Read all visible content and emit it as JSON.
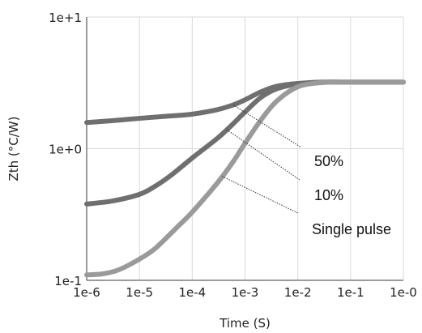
{
  "chart_data": {
    "type": "line",
    "title": "",
    "xlabel": "Time (S)",
    "ylabel": "Zth (°C/W)",
    "x_scale": "log",
    "y_scale": "log",
    "xlim": [
      1e-06,
      1
    ],
    "ylim": [
      0.1,
      10
    ],
    "grid": true,
    "x_ticks": [
      1e-06,
      1e-05,
      0.0001,
      0.001,
      0.01,
      0.1,
      1
    ],
    "x_tick_labels": [
      "1e-6",
      "1e-5",
      "1e-4",
      "1e-3",
      "1e-2",
      "1e-1",
      "1e-0"
    ],
    "y_ticks": [
      0.1,
      1,
      10
    ],
    "y_tick_labels": [
      "1e-1",
      "1e+0",
      "1e+1"
    ],
    "colors": {
      "duty_50": "#6f6f6f",
      "duty_10": "#6f6f6f",
      "single": "#9a9a9a",
      "grid": "#d9d9d9",
      "axis": "#7a7a7a",
      "leader": "#333333"
    },
    "series": [
      {
        "name": "50%",
        "x": [
          1e-06,
          3e-06,
          1e-05,
          3e-05,
          0.0001,
          0.0003,
          0.0006,
          0.001,
          0.002,
          0.004,
          0.01,
          0.03,
          0.1,
          0.3,
          1
        ],
        "y": [
          1.58,
          1.63,
          1.7,
          1.76,
          1.83,
          1.98,
          2.15,
          2.35,
          2.7,
          2.98,
          3.13,
          3.2,
          3.2,
          3.2,
          3.2
        ]
      },
      {
        "name": "10%",
        "x": [
          1e-06,
          3e-06,
          1e-05,
          2e-05,
          4e-05,
          0.0001,
          0.0003,
          0.0006,
          0.001,
          0.002,
          0.004,
          0.01,
          0.03,
          0.1,
          0.3,
          1
        ],
        "y": [
          0.38,
          0.4,
          0.45,
          0.52,
          0.63,
          0.85,
          1.2,
          1.55,
          1.9,
          2.45,
          2.85,
          3.1,
          3.2,
          3.2,
          3.2,
          3.2
        ]
      },
      {
        "name": "Single pulse",
        "x": [
          1e-06,
          2e-06,
          4e-06,
          1e-05,
          2e-05,
          5e-05,
          0.0001,
          0.0003,
          0.0006,
          0.001,
          0.002,
          0.004,
          0.01,
          0.03,
          0.1,
          0.3,
          1
        ],
        "y": [
          0.11,
          0.112,
          0.12,
          0.145,
          0.175,
          0.25,
          0.33,
          0.55,
          0.8,
          1.1,
          1.65,
          2.3,
          2.95,
          3.18,
          3.2,
          3.2,
          3.2
        ]
      }
    ],
    "annotations": [
      {
        "text": "50%",
        "series": "50%",
        "at_x": 0.0006
      },
      {
        "text": "10%",
        "series": "10%",
        "at_x": 0.00045
      },
      {
        "text": "Single pulse",
        "series": "Single pulse",
        "at_x": 0.00037
      }
    ]
  }
}
